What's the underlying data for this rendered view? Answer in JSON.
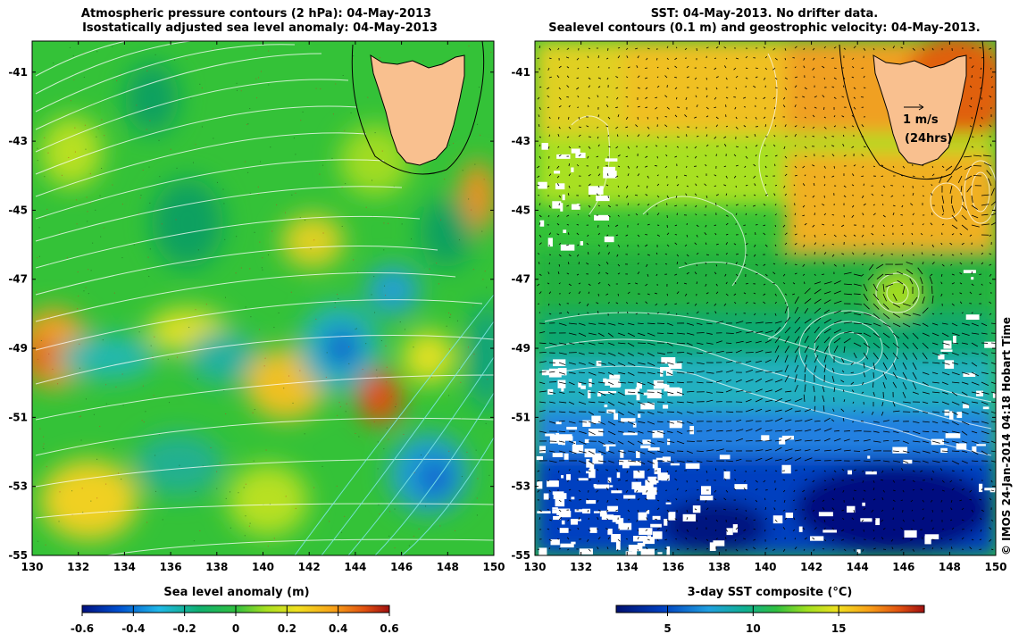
{
  "left_panel": {
    "title_line1": "Atmospheric pressure contours (2 hPa): 04-May-2013",
    "title_line2": "Isostatically adjusted sea level anomaly: 04-May-2013",
    "colorbar_label": "Sea level anomaly (m)",
    "colorbar_ticks": [
      "-0.6",
      "-0.4",
      "-0.2",
      "0",
      "0.2",
      "0.4",
      "0.6"
    ],
    "colorbar_range": [
      -0.6,
      0.6
    ]
  },
  "right_panel": {
    "title_line1": "SST: 04-May-2013. No drifter data.",
    "title_line2": "Sealevel contours (0.1 m) and geostrophic velocity: 04-May-2013.",
    "colorbar_label": "3-day SST composite (°C)",
    "colorbar_ticks": [
      "5",
      "10",
      "15"
    ],
    "colorbar_range": [
      2,
      20
    ],
    "scale_arrow_label": "1 m/s",
    "scale_arrow_sub": "(24hrs)",
    "credit": "© IMOS 24-Jan-2014 04:18 Hobart Time"
  },
  "axes": {
    "lon_ticks": [
      "130",
      "132",
      "134",
      "136",
      "138",
      "140",
      "142",
      "144",
      "146",
      "148",
      "150"
    ],
    "lat_ticks": [
      "-41",
      "-43",
      "-45",
      "-47",
      "-49",
      "-51",
      "-53",
      "-55"
    ],
    "lon_range": [
      130,
      150
    ],
    "lat_range": [
      -55,
      -40.1
    ]
  },
  "colors": {
    "land": "#f9c08f",
    "coast": "#000000",
    "pressure_contour": "#ffffff",
    "pressure_contour_low": "#7fe8e8",
    "sla_contour": "#ffffff",
    "vector": "#000000"
  }
}
